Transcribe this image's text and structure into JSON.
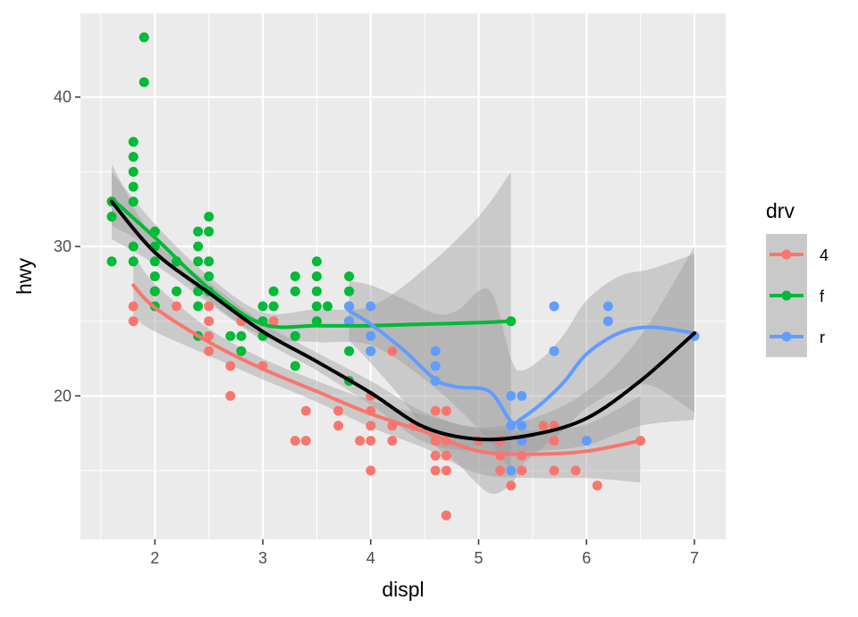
{
  "chart_data": {
    "type": "scatter",
    "xlabel": "displ",
    "ylabel": "hwy",
    "xlim": [
      1.31,
      7.29
    ],
    "ylim": [
      10.4,
      45.6
    ],
    "x_ticks": [
      "2",
      "3",
      "4",
      "5",
      "6",
      "7"
    ],
    "x_tick_values": [
      2,
      3,
      4,
      5,
      6,
      7
    ],
    "y_ticks": [
      "20",
      "30",
      "40"
    ],
    "y_tick_values": [
      20,
      30,
      40
    ],
    "grid": true,
    "background": "#ebebeb",
    "legend": {
      "title": "drv",
      "position": "right",
      "items": [
        {
          "label": "4",
          "color": "#f8766d"
        },
        {
          "label": "f",
          "color": "#00ba38"
        },
        {
          "label": "r",
          "color": "#619cff"
        }
      ]
    },
    "series": [
      {
        "name": "4",
        "color": "#f8766d",
        "points": [
          [
            1.8,
            26
          ],
          [
            1.8,
            25
          ],
          [
            2.0,
            28
          ],
          [
            2.0,
            27
          ],
          [
            2.2,
            26
          ],
          [
            2.5,
            26
          ],
          [
            2.5,
            25
          ],
          [
            2.5,
            24
          ],
          [
            2.5,
            23
          ],
          [
            2.7,
            22
          ],
          [
            2.7,
            20
          ],
          [
            2.8,
            25
          ],
          [
            3.0,
            22
          ],
          [
            3.1,
            25
          ],
          [
            3.3,
            17
          ],
          [
            3.4,
            17
          ],
          [
            3.4,
            19
          ],
          [
            3.7,
            19
          ],
          [
            3.7,
            18
          ],
          [
            3.9,
            17
          ],
          [
            4.0,
            20
          ],
          [
            4.0,
            19
          ],
          [
            4.0,
            18
          ],
          [
            4.0,
            17
          ],
          [
            4.0,
            15
          ],
          [
            4.2,
            23
          ],
          [
            4.2,
            18
          ],
          [
            4.2,
            17
          ],
          [
            4.4,
            18
          ],
          [
            4.6,
            19
          ],
          [
            4.6,
            17
          ],
          [
            4.6,
            16
          ],
          [
            4.6,
            15
          ],
          [
            4.7,
            19
          ],
          [
            4.7,
            17
          ],
          [
            4.7,
            16
          ],
          [
            4.7,
            15
          ],
          [
            4.7,
            12
          ],
          [
            5.0,
            17
          ],
          [
            5.2,
            17
          ],
          [
            5.2,
            16
          ],
          [
            5.2,
            15
          ],
          [
            5.3,
            14
          ],
          [
            5.4,
            17
          ],
          [
            5.4,
            16
          ],
          [
            5.4,
            15
          ],
          [
            5.6,
            18
          ],
          [
            5.7,
            18
          ],
          [
            5.7,
            17
          ],
          [
            5.7,
            15
          ],
          [
            5.9,
            15
          ],
          [
            6.1,
            14
          ],
          [
            6.5,
            17
          ]
        ],
        "smooth": [
          [
            1.8,
            27.4
          ],
          [
            2.0,
            25.9
          ],
          [
            2.5,
            23.6
          ],
          [
            3.0,
            21.8
          ],
          [
            3.5,
            20.3
          ],
          [
            4.0,
            18.8
          ],
          [
            4.5,
            17.6
          ],
          [
            5.0,
            16.3
          ],
          [
            5.5,
            16.1
          ],
          [
            6.0,
            16.3
          ],
          [
            6.5,
            17.0
          ]
        ],
        "band": {
          "upper": [
            [
              1.8,
              29.5
            ],
            [
              2.0,
              27.5
            ],
            [
              2.5,
              24.5
            ],
            [
              3.0,
              22.5
            ],
            [
              3.5,
              21.0
            ],
            [
              4.0,
              19.7
            ],
            [
              4.5,
              18.7
            ],
            [
              5.0,
              17.8
            ],
            [
              5.5,
              17.7
            ],
            [
              6.0,
              18.1
            ],
            [
              6.5,
              20.0
            ]
          ],
          "lower": [
            [
              1.8,
              25.3
            ],
            [
              2.0,
              24.3
            ],
            [
              2.5,
              22.7
            ],
            [
              3.0,
              21.1
            ],
            [
              3.5,
              19.6
            ],
            [
              4.0,
              17.9
            ],
            [
              4.5,
              16.5
            ],
            [
              5.0,
              14.8
            ],
            [
              5.5,
              14.5
            ],
            [
              6.0,
              14.5
            ],
            [
              6.5,
              14.2
            ]
          ]
        }
      },
      {
        "name": "f",
        "color": "#00ba38",
        "points": [
          [
            1.6,
            33
          ],
          [
            1.6,
            32
          ],
          [
            1.6,
            29
          ],
          [
            1.8,
            37
          ],
          [
            1.8,
            36
          ],
          [
            1.8,
            35
          ],
          [
            1.8,
            34
          ],
          [
            1.8,
            33
          ],
          [
            1.8,
            30
          ],
          [
            1.8,
            29
          ],
          [
            1.9,
            44
          ],
          [
            1.9,
            41
          ],
          [
            2.0,
            31
          ],
          [
            2.0,
            30
          ],
          [
            2.0,
            29
          ],
          [
            2.0,
            28
          ],
          [
            2.0,
            27
          ],
          [
            2.0,
            26
          ],
          [
            2.2,
            29
          ],
          [
            2.2,
            27
          ],
          [
            2.4,
            31
          ],
          [
            2.4,
            30
          ],
          [
            2.4,
            29
          ],
          [
            2.4,
            27
          ],
          [
            2.4,
            26
          ],
          [
            2.4,
            24
          ],
          [
            2.5,
            32
          ],
          [
            2.5,
            31
          ],
          [
            2.5,
            29
          ],
          [
            2.5,
            28
          ],
          [
            2.5,
            27
          ],
          [
            2.7,
            24
          ],
          [
            2.8,
            24
          ],
          [
            2.8,
            23
          ],
          [
            3.0,
            26
          ],
          [
            3.0,
            25
          ],
          [
            3.0,
            24
          ],
          [
            3.1,
            27
          ],
          [
            3.1,
            26
          ],
          [
            3.3,
            28
          ],
          [
            3.3,
            27
          ],
          [
            3.3,
            24
          ],
          [
            3.3,
            22
          ],
          [
            3.5,
            29
          ],
          [
            3.5,
            28
          ],
          [
            3.5,
            27
          ],
          [
            3.5,
            26
          ],
          [
            3.5,
            25
          ],
          [
            3.6,
            26
          ],
          [
            3.8,
            28
          ],
          [
            3.8,
            27
          ],
          [
            3.8,
            26
          ],
          [
            3.8,
            25
          ],
          [
            3.8,
            23
          ],
          [
            3.8,
            21
          ],
          [
            4.0,
            23
          ],
          [
            5.3,
            25
          ]
        ],
        "smooth": [
          [
            1.6,
            33.2
          ],
          [
            2.0,
            30.6
          ],
          [
            2.5,
            27.2
          ],
          [
            3.0,
            24.8
          ],
          [
            3.5,
            24.7
          ],
          [
            4.0,
            24.7
          ],
          [
            4.5,
            24.8
          ],
          [
            5.0,
            24.9
          ],
          [
            5.3,
            25.0
          ]
        ],
        "band": {
          "upper": [
            [
              1.6,
              35.0
            ],
            [
              2.0,
              31.5
            ],
            [
              2.5,
              28.0
            ],
            [
              3.0,
              25.6
            ],
            [
              3.5,
              25.8
            ],
            [
              4.0,
              26.0
            ],
            [
              4.5,
              28.5
            ],
            [
              5.0,
              32.0
            ],
            [
              5.3,
              35.0
            ]
          ],
          "lower": [
            [
              1.6,
              31.4
            ],
            [
              2.0,
              29.7
            ],
            [
              2.5,
              26.4
            ],
            [
              3.0,
              24.0
            ],
            [
              3.5,
              23.6
            ],
            [
              4.0,
              23.4
            ],
            [
              4.5,
              21.1
            ],
            [
              5.0,
              17.8
            ],
            [
              5.3,
              15.0
            ]
          ]
        }
      },
      {
        "name": "r",
        "color": "#619cff",
        "points": [
          [
            3.8,
            26
          ],
          [
            3.8,
            25
          ],
          [
            4.0,
            26
          ],
          [
            4.0,
            24
          ],
          [
            4.0,
            23
          ],
          [
            4.6,
            23
          ],
          [
            4.6,
            22
          ],
          [
            4.6,
            21
          ],
          [
            5.3,
            20
          ],
          [
            5.3,
            18
          ],
          [
            5.3,
            15
          ],
          [
            5.4,
            20
          ],
          [
            5.4,
            18
          ],
          [
            5.4,
            17
          ],
          [
            5.7,
            26
          ],
          [
            5.7,
            23
          ],
          [
            6.0,
            17
          ],
          [
            6.2,
            26
          ],
          [
            6.2,
            25
          ],
          [
            7.0,
            24
          ]
        ],
        "smooth": [
          [
            3.8,
            25.7
          ],
          [
            4.0,
            24.8
          ],
          [
            4.3,
            23.1
          ],
          [
            4.6,
            21.1
          ],
          [
            4.8,
            20.6
          ],
          [
            5.1,
            20.3
          ],
          [
            5.3,
            18.3
          ],
          [
            5.4,
            18.5
          ],
          [
            5.6,
            19.6
          ],
          [
            5.8,
            21.0
          ],
          [
            6.0,
            22.8
          ],
          [
            6.3,
            24.2
          ],
          [
            6.6,
            24.6
          ],
          [
            7.0,
            24.2
          ]
        ],
        "band": {
          "upper": [
            [
              3.8,
              27.7
            ],
            [
              4.0,
              27.4
            ],
            [
              4.3,
              26.5
            ],
            [
              4.6,
              25.5
            ],
            [
              4.8,
              25.7
            ],
            [
              5.1,
              27.1
            ],
            [
              5.3,
              22.5
            ],
            [
              5.4,
              21.7
            ],
            [
              5.6,
              22.6
            ],
            [
              5.8,
              24.2
            ],
            [
              6.0,
              26.4
            ],
            [
              6.3,
              28.0
            ],
            [
              6.6,
              28.5
            ],
            [
              7.0,
              29.5
            ]
          ],
          "lower": [
            [
              3.8,
              23.7
            ],
            [
              4.0,
              22.2
            ],
            [
              4.3,
              19.7
            ],
            [
              4.6,
              16.7
            ],
            [
              4.8,
              15.5
            ],
            [
              5.1,
              13.5
            ],
            [
              5.3,
              14.1
            ],
            [
              5.4,
              15.3
            ],
            [
              5.6,
              16.6
            ],
            [
              5.8,
              17.8
            ],
            [
              6.0,
              19.2
            ],
            [
              6.3,
              20.4
            ],
            [
              6.6,
              20.7
            ],
            [
              7.0,
              18.9
            ]
          ]
        }
      }
    ],
    "overall_smooth": {
      "color": "#000000",
      "points": [
        [
          1.6,
          33.0
        ],
        [
          2.0,
          29.6
        ],
        [
          2.5,
          26.9
        ],
        [
          3.0,
          24.3
        ],
        [
          3.5,
          22.3
        ],
        [
          4.0,
          20.2
        ],
        [
          4.5,
          17.9
        ],
        [
          5.0,
          17.1
        ],
        [
          5.5,
          17.4
        ],
        [
          6.0,
          18.5
        ],
        [
          6.5,
          21.0
        ],
        [
          7.0,
          24.2
        ]
      ],
      "band": {
        "upper": [
          [
            1.6,
            35.5
          ],
          [
            2.0,
            30.4
          ],
          [
            2.5,
            27.6
          ],
          [
            3.0,
            24.9
          ],
          [
            3.5,
            22.9
          ],
          [
            4.0,
            21.0
          ],
          [
            4.5,
            18.9
          ],
          [
            5.0,
            17.9
          ],
          [
            5.5,
            18.5
          ],
          [
            6.0,
            20.3
          ],
          [
            6.5,
            24.0
          ],
          [
            7.0,
            30.0
          ]
        ],
        "lower": [
          [
            1.6,
            30.5
          ],
          [
            2.0,
            28.8
          ],
          [
            2.5,
            26.2
          ],
          [
            3.0,
            23.7
          ],
          [
            3.5,
            21.7
          ],
          [
            4.0,
            19.4
          ],
          [
            4.5,
            16.9
          ],
          [
            5.0,
            16.3
          ],
          [
            5.5,
            16.3
          ],
          [
            6.0,
            16.7
          ],
          [
            6.5,
            18.0
          ],
          [
            7.0,
            18.4
          ]
        ]
      }
    }
  }
}
